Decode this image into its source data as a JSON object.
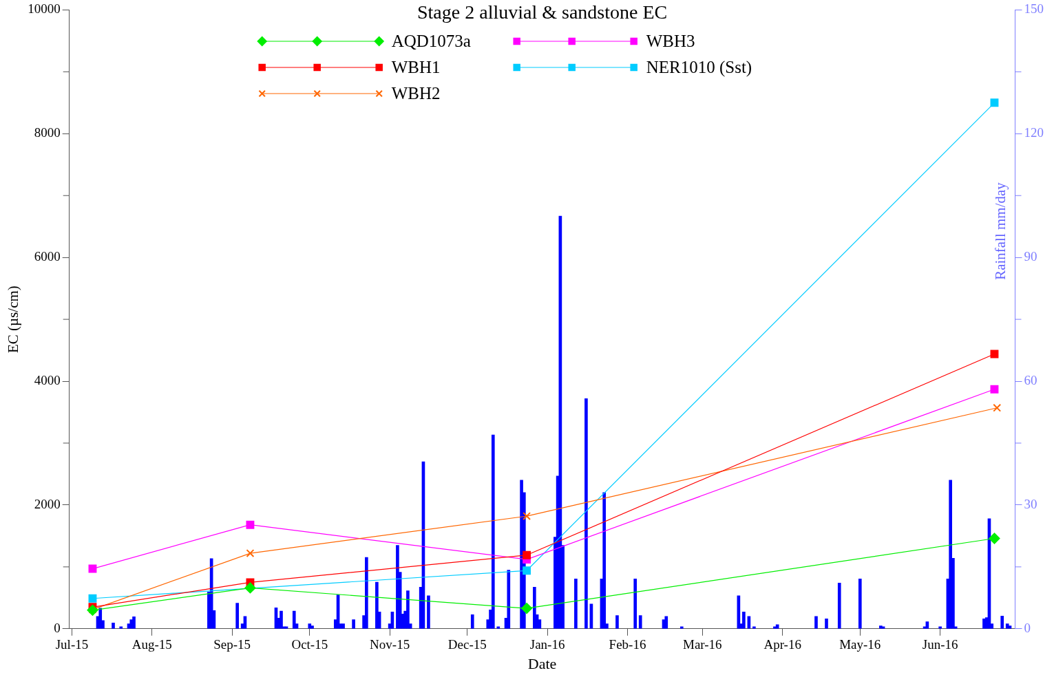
{
  "chart_data": {
    "type": "line",
    "title": "Stage 2 alluvial & sandstone EC",
    "xlabel": "Date",
    "ylabel": "EC (µs/cm)",
    "y2label": "Rainfall mm/day",
    "legend": "top",
    "grid": false,
    "xlim": [
      "2015-06-30",
      "2016-06-30"
    ],
    "xticks": [
      {
        "value": "2015-07-01",
        "label": "Jul-15"
      },
      {
        "value": "2015-08-01",
        "label": "Aug-15"
      },
      {
        "value": "2015-09-01",
        "label": "Sep-15"
      },
      {
        "value": "2015-10-01",
        "label": "Oct-15"
      },
      {
        "value": "2015-11-01",
        "label": "Nov-15"
      },
      {
        "value": "2015-12-01",
        "label": "Dec-15"
      },
      {
        "value": "2016-01-01",
        "label": "Jan-16"
      },
      {
        "value": "2016-02-01",
        "label": "Feb-16"
      },
      {
        "value": "2016-03-01",
        "label": "Mar-16"
      },
      {
        "value": "2016-04-01",
        "label": "Apr-16"
      },
      {
        "value": "2016-05-01",
        "label": "May-16"
      },
      {
        "value": "2016-06-01",
        "label": "Jun-16"
      }
    ],
    "ylim": [
      0,
      10000
    ],
    "yticks": [
      0,
      {
        "value": 1000,
        "label": null
      },
      2000,
      {
        "value": 3000,
        "label": null
      },
      4000,
      {
        "value": 5000,
        "label": null
      },
      6000,
      {
        "value": 7000,
        "label": null
      },
      8000,
      {
        "value": 9000,
        "label": null
      },
      10000
    ],
    "y2lim": [
      0,
      150
    ],
    "y2ticks": [
      0,
      {
        "value": 15,
        "label": null
      },
      30,
      {
        "value": 45,
        "label": null
      },
      60,
      {
        "value": 75,
        "label": null
      },
      90,
      {
        "value": 105,
        "label": null
      },
      120,
      {
        "value": 135,
        "label": null
      },
      150
    ],
    "series": [
      {
        "type": "bar",
        "axis": "y2",
        "color": "#0000ff",
        "x": [
          "2015-07-11",
          "2015-07-12",
          "2015-07-13",
          "2015-07-17",
          "2015-07-20",
          "2015-07-23",
          "2015-07-24",
          "2015-07-25",
          "2015-08-23",
          "2015-08-24",
          "2015-08-25",
          "2015-09-03",
          "2015-09-05",
          "2015-09-06",
          "2015-09-18",
          "2015-09-19",
          "2015-09-20",
          "2015-09-21",
          "2015-09-22",
          "2015-09-25",
          "2015-09-26",
          "2015-10-01",
          "2015-10-02",
          "2015-10-11",
          "2015-10-12",
          "2015-10-13",
          "2015-10-14",
          "2015-10-18",
          "2015-10-22",
          "2015-10-23",
          "2015-10-27",
          "2015-10-28",
          "2015-11-01",
          "2015-11-02",
          "2015-11-04",
          "2015-11-05",
          "2015-11-06",
          "2015-11-07",
          "2015-11-08",
          "2015-11-09",
          "2015-11-13",
          "2015-11-14",
          "2015-11-16",
          "2015-12-03",
          "2015-12-09",
          "2015-12-10",
          "2015-12-11",
          "2015-12-13",
          "2015-12-16",
          "2015-12-17",
          "2015-12-22",
          "2015-12-23",
          "2015-12-27",
          "2015-12-28",
          "2015-12-29",
          "2016-01-04",
          "2016-01-05",
          "2016-01-06",
          "2016-01-07",
          "2016-01-12",
          "2016-01-16",
          "2016-01-18",
          "2016-01-22",
          "2016-01-23",
          "2016-01-24",
          "2016-01-28",
          "2016-02-04",
          "2016-02-06",
          "2016-02-15",
          "2016-02-16",
          "2016-02-22",
          "2016-03-15",
          "2016-03-16",
          "2016-03-17",
          "2016-03-19",
          "2016-03-21",
          "2016-03-29",
          "2016-03-30",
          "2016-04-14",
          "2016-04-18",
          "2016-04-23",
          "2016-05-01",
          "2016-05-09",
          "2016-05-10",
          "2016-05-26",
          "2016-05-27",
          "2016-06-01",
          "2016-06-04",
          "2016-06-05",
          "2016-06-06",
          "2016-06-07",
          "2016-06-18",
          "2016-06-19",
          "2016-06-20",
          "2016-06-21",
          "2016-06-25",
          "2016-06-27",
          "2016-06-28"
        ],
        "values": [
          3,
          5,
          2,
          1.4,
          0.5,
          1.2,
          2.2,
          2.9,
          8.9,
          17,
          4.4,
          6.2,
          1.2,
          3,
          5.1,
          2.6,
          4.3,
          0.5,
          0.5,
          4.3,
          1.2,
          1.2,
          0.7,
          2.2,
          8.2,
          1.2,
          1.2,
          2.2,
          3.2,
          17.3,
          11.3,
          4.1,
          1.2,
          4.1,
          20.2,
          13.7,
          3.6,
          4.3,
          9.2,
          1.2,
          10.1,
          40.5,
          8,
          3.4,
          2.2,
          4.6,
          47,
          0.5,
          2.6,
          14.2,
          36,
          33,
          10.1,
          3.4,
          2.2,
          22.2,
          37,
          100,
          20.2,
          12.1,
          55.8,
          6,
          12.1,
          33,
          1.2,
          3.2,
          12.1,
          3.2,
          2.2,
          3,
          0.5,
          8,
          1.2,
          4.1,
          3,
          0.5,
          0.5,
          1,
          3,
          2.4,
          11.1,
          12.1,
          0.7,
          0.5,
          0.5,
          1.7,
          0.5,
          12.1,
          36,
          17.1,
          0.5,
          2.4,
          2.7,
          26.7,
          1.2,
          3.1,
          1.2,
          0.7
        ]
      },
      {
        "name": "AQD1073a",
        "color": "#00ee00",
        "marker": "diamond",
        "x": [
          "2015-07-09",
          "2015-09-08",
          "2015-12-24",
          "2016-06-22"
        ],
        "values": [
          300,
          660,
          330,
          1460
        ]
      },
      {
        "name": "WBH1",
        "color": "#ff0000",
        "marker": "square",
        "x": [
          "2015-07-09",
          "2015-09-08",
          "2015-12-24",
          "2016-06-22"
        ],
        "values": [
          350,
          750,
          1190,
          4440
        ]
      },
      {
        "name": "WBH2",
        "color": "#ff6600",
        "marker": "cross",
        "x": [
          "2015-07-09",
          "2015-09-08",
          "2015-12-24",
          "2016-06-23"
        ],
        "values": [
          310,
          1220,
          1820,
          3570
        ]
      },
      {
        "name": "WBH3",
        "color": "#ff00ff",
        "marker": "square",
        "x": [
          "2015-07-09",
          "2015-09-08",
          "2015-12-24",
          "2016-06-22"
        ],
        "values": [
          970,
          1680,
          1120,
          3870
        ]
      },
      {
        "name": "NER1010 (Sst)",
        "color": "#00ccff",
        "marker": "square",
        "x": [
          "2015-07-09",
          "2015-12-24",
          "2016-06-22"
        ],
        "values": [
          490,
          940,
          8500
        ]
      }
    ]
  }
}
